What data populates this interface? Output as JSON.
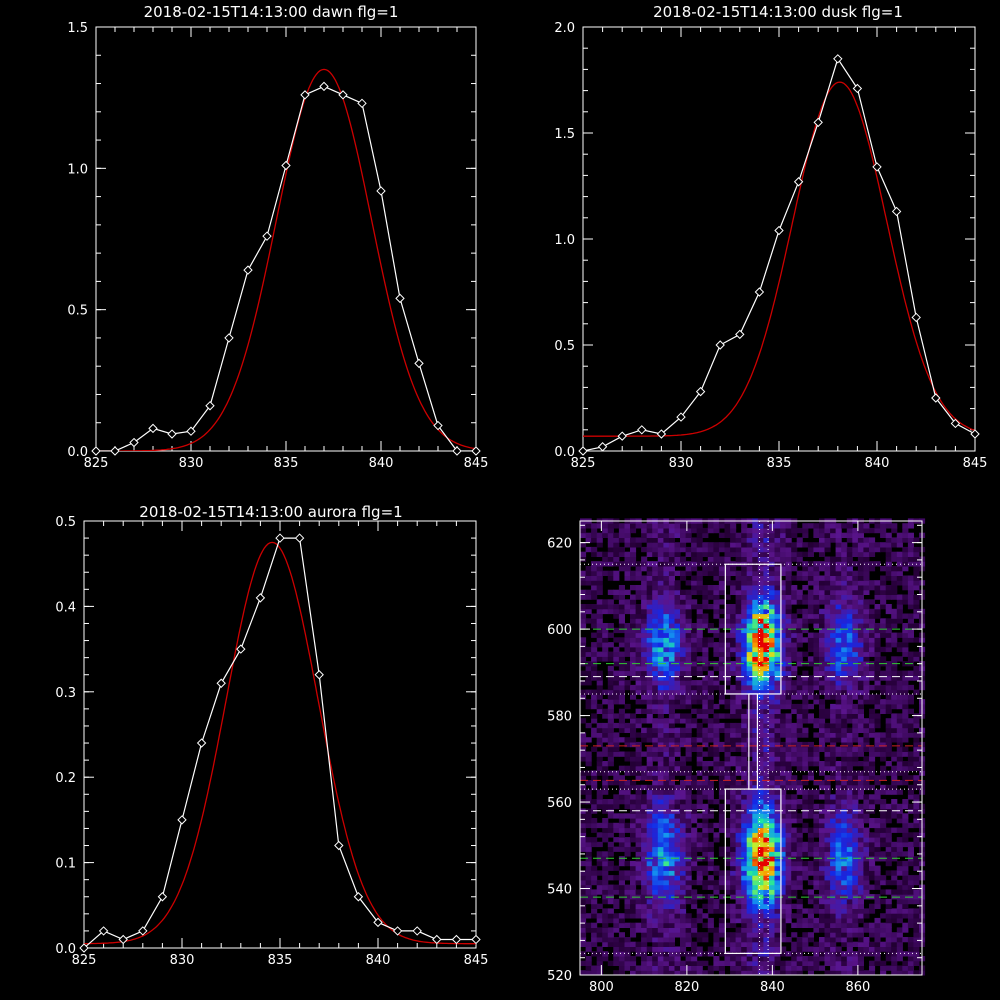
{
  "colors": {
    "background": "#000000",
    "foreground": "#ffffff",
    "fit_line": "#cc0000",
    "data_line": "#ffffff",
    "green_dash": "#33cc33",
    "red_dash": "#cc2222"
  },
  "chart_data": [
    {
      "type": "line",
      "title": "2018-02-15T14:13:00 dawn flg=1",
      "xlim": [
        825,
        845
      ],
      "ylim": [
        0,
        1.5
      ],
      "xticks": [
        825,
        830,
        835,
        840,
        845
      ],
      "yticks": [
        0.0,
        0.5,
        1.0,
        1.5
      ],
      "xtick_labels": [
        "825",
        "830",
        "835",
        "840",
        "845"
      ],
      "ytick_labels": [
        "0.0",
        "0.5",
        "1.0",
        "1.5"
      ],
      "minor_x_step": 1,
      "series": [
        {
          "style": "data-diamonds",
          "x": [
            825,
            826,
            827,
            828,
            829,
            830,
            831,
            832,
            833,
            834,
            835,
            836,
            837,
            838,
            839,
            840,
            841,
            842,
            843,
            844,
            845
          ],
          "y": [
            0.0,
            0.0,
            0.03,
            0.08,
            0.06,
            0.07,
            0.16,
            0.4,
            0.64,
            0.76,
            1.01,
            1.26,
            1.29,
            1.26,
            1.23,
            0.92,
            0.54,
            0.31,
            0.09,
            0.0,
            0.0
          ]
        },
        {
          "style": "gaussian-fit",
          "amplitude": 1.35,
          "center": 837.0,
          "sigma": 2.5,
          "offset": 0.0
        }
      ]
    },
    {
      "type": "line",
      "title": "2018-02-15T14:13:00 dusk flg=1",
      "xlim": [
        825,
        845
      ],
      "ylim": [
        0,
        2.0
      ],
      "xticks": [
        825,
        830,
        835,
        840,
        845
      ],
      "yticks": [
        0.0,
        0.5,
        1.0,
        1.5,
        2.0
      ],
      "xtick_labels": [
        "825",
        "830",
        "835",
        "840",
        "845"
      ],
      "ytick_labels": [
        "0.0",
        "0.5",
        "1.0",
        "1.5",
        "2.0"
      ],
      "minor_x_step": 1,
      "series": [
        {
          "style": "data-diamonds",
          "x": [
            825,
            826,
            827,
            828,
            829,
            830,
            831,
            832,
            833,
            834,
            835,
            836,
            837,
            838,
            839,
            840,
            841,
            842,
            843,
            844,
            845
          ],
          "y": [
            0.0,
            0.02,
            0.07,
            0.1,
            0.08,
            0.16,
            0.28,
            0.5,
            0.55,
            0.75,
            1.04,
            1.27,
            1.55,
            1.85,
            1.71,
            1.34,
            1.13,
            0.63,
            0.25,
            0.13,
            0.08
          ]
        },
        {
          "style": "gaussian-fit",
          "amplitude": 1.67,
          "center": 838.1,
          "sigma": 2.4,
          "offset": 0.07
        }
      ]
    },
    {
      "type": "line",
      "title": "2018-02-15T14:13:00 aurora flg=1",
      "xlim": [
        825,
        845
      ],
      "ylim": [
        0,
        0.5
      ],
      "xticks": [
        825,
        830,
        835,
        840,
        845
      ],
      "yticks": [
        0.0,
        0.1,
        0.2,
        0.3,
        0.4,
        0.5
      ],
      "xtick_labels": [
        "825",
        "830",
        "835",
        "840",
        "845"
      ],
      "ytick_labels": [
        "0.0",
        "0.1",
        "0.2",
        "0.3",
        "0.4",
        "0.5"
      ],
      "minor_x_step": 1,
      "series": [
        {
          "style": "data-diamonds",
          "x": [
            825,
            826,
            827,
            828,
            829,
            830,
            831,
            832,
            833,
            834,
            835,
            836,
            837,
            838,
            839,
            840,
            841,
            842,
            843,
            844,
            845
          ],
          "y": [
            0.0,
            0.02,
            0.01,
            0.02,
            0.06,
            0.15,
            0.24,
            0.31,
            0.35,
            0.41,
            0.48,
            0.48,
            0.32,
            0.12,
            0.06,
            0.03,
            0.02,
            0.02,
            0.01,
            0.01,
            0.01
          ]
        },
        {
          "style": "gaussian-fit",
          "amplitude": 0.47,
          "center": 834.6,
          "sigma": 2.35,
          "offset": 0.005
        }
      ]
    },
    {
      "type": "heatmap",
      "title": "",
      "xlim": [
        795,
        875
      ],
      "ylim": [
        520,
        625
      ],
      "xticks": [
        800,
        820,
        840,
        860
      ],
      "yticks": [
        520,
        540,
        560,
        580,
        600,
        620
      ],
      "xtick_labels": [
        "800",
        "820",
        "840",
        "860"
      ],
      "ytick_labels": [
        "520",
        "540",
        "560",
        "580",
        "600",
        "620"
      ],
      "bright_columns": [
        {
          "x_center": 814,
          "half_width": 5,
          "level": 0.45
        },
        {
          "x_center": 837,
          "half_width": 5,
          "level": 0.95
        },
        {
          "x_center": 856,
          "half_width": 5,
          "level": 0.35
        }
      ],
      "bright_bands": [
        {
          "y_center": 596,
          "half_height": 12
        },
        {
          "y_center": 547,
          "half_height": 14
        }
      ],
      "boxes": [
        {
          "x0": 829,
          "x1": 842,
          "y0": 585,
          "y1": 615
        },
        {
          "x0": 829,
          "x1": 842,
          "y0": 525,
          "y1": 563
        },
        {
          "x0": 834.5,
          "x1": 836.5,
          "y0": 563,
          "y1": 585
        }
      ],
      "white_dotted_h": [
        615,
        585,
        563,
        525,
        567
      ],
      "white_dashed_h": [
        589,
        558
      ],
      "green_dashed_h": [
        600,
        592,
        547,
        538
      ],
      "red_dashed_h": [
        573,
        565
      ],
      "white_dotted_v": [
        837,
        839
      ]
    }
  ]
}
